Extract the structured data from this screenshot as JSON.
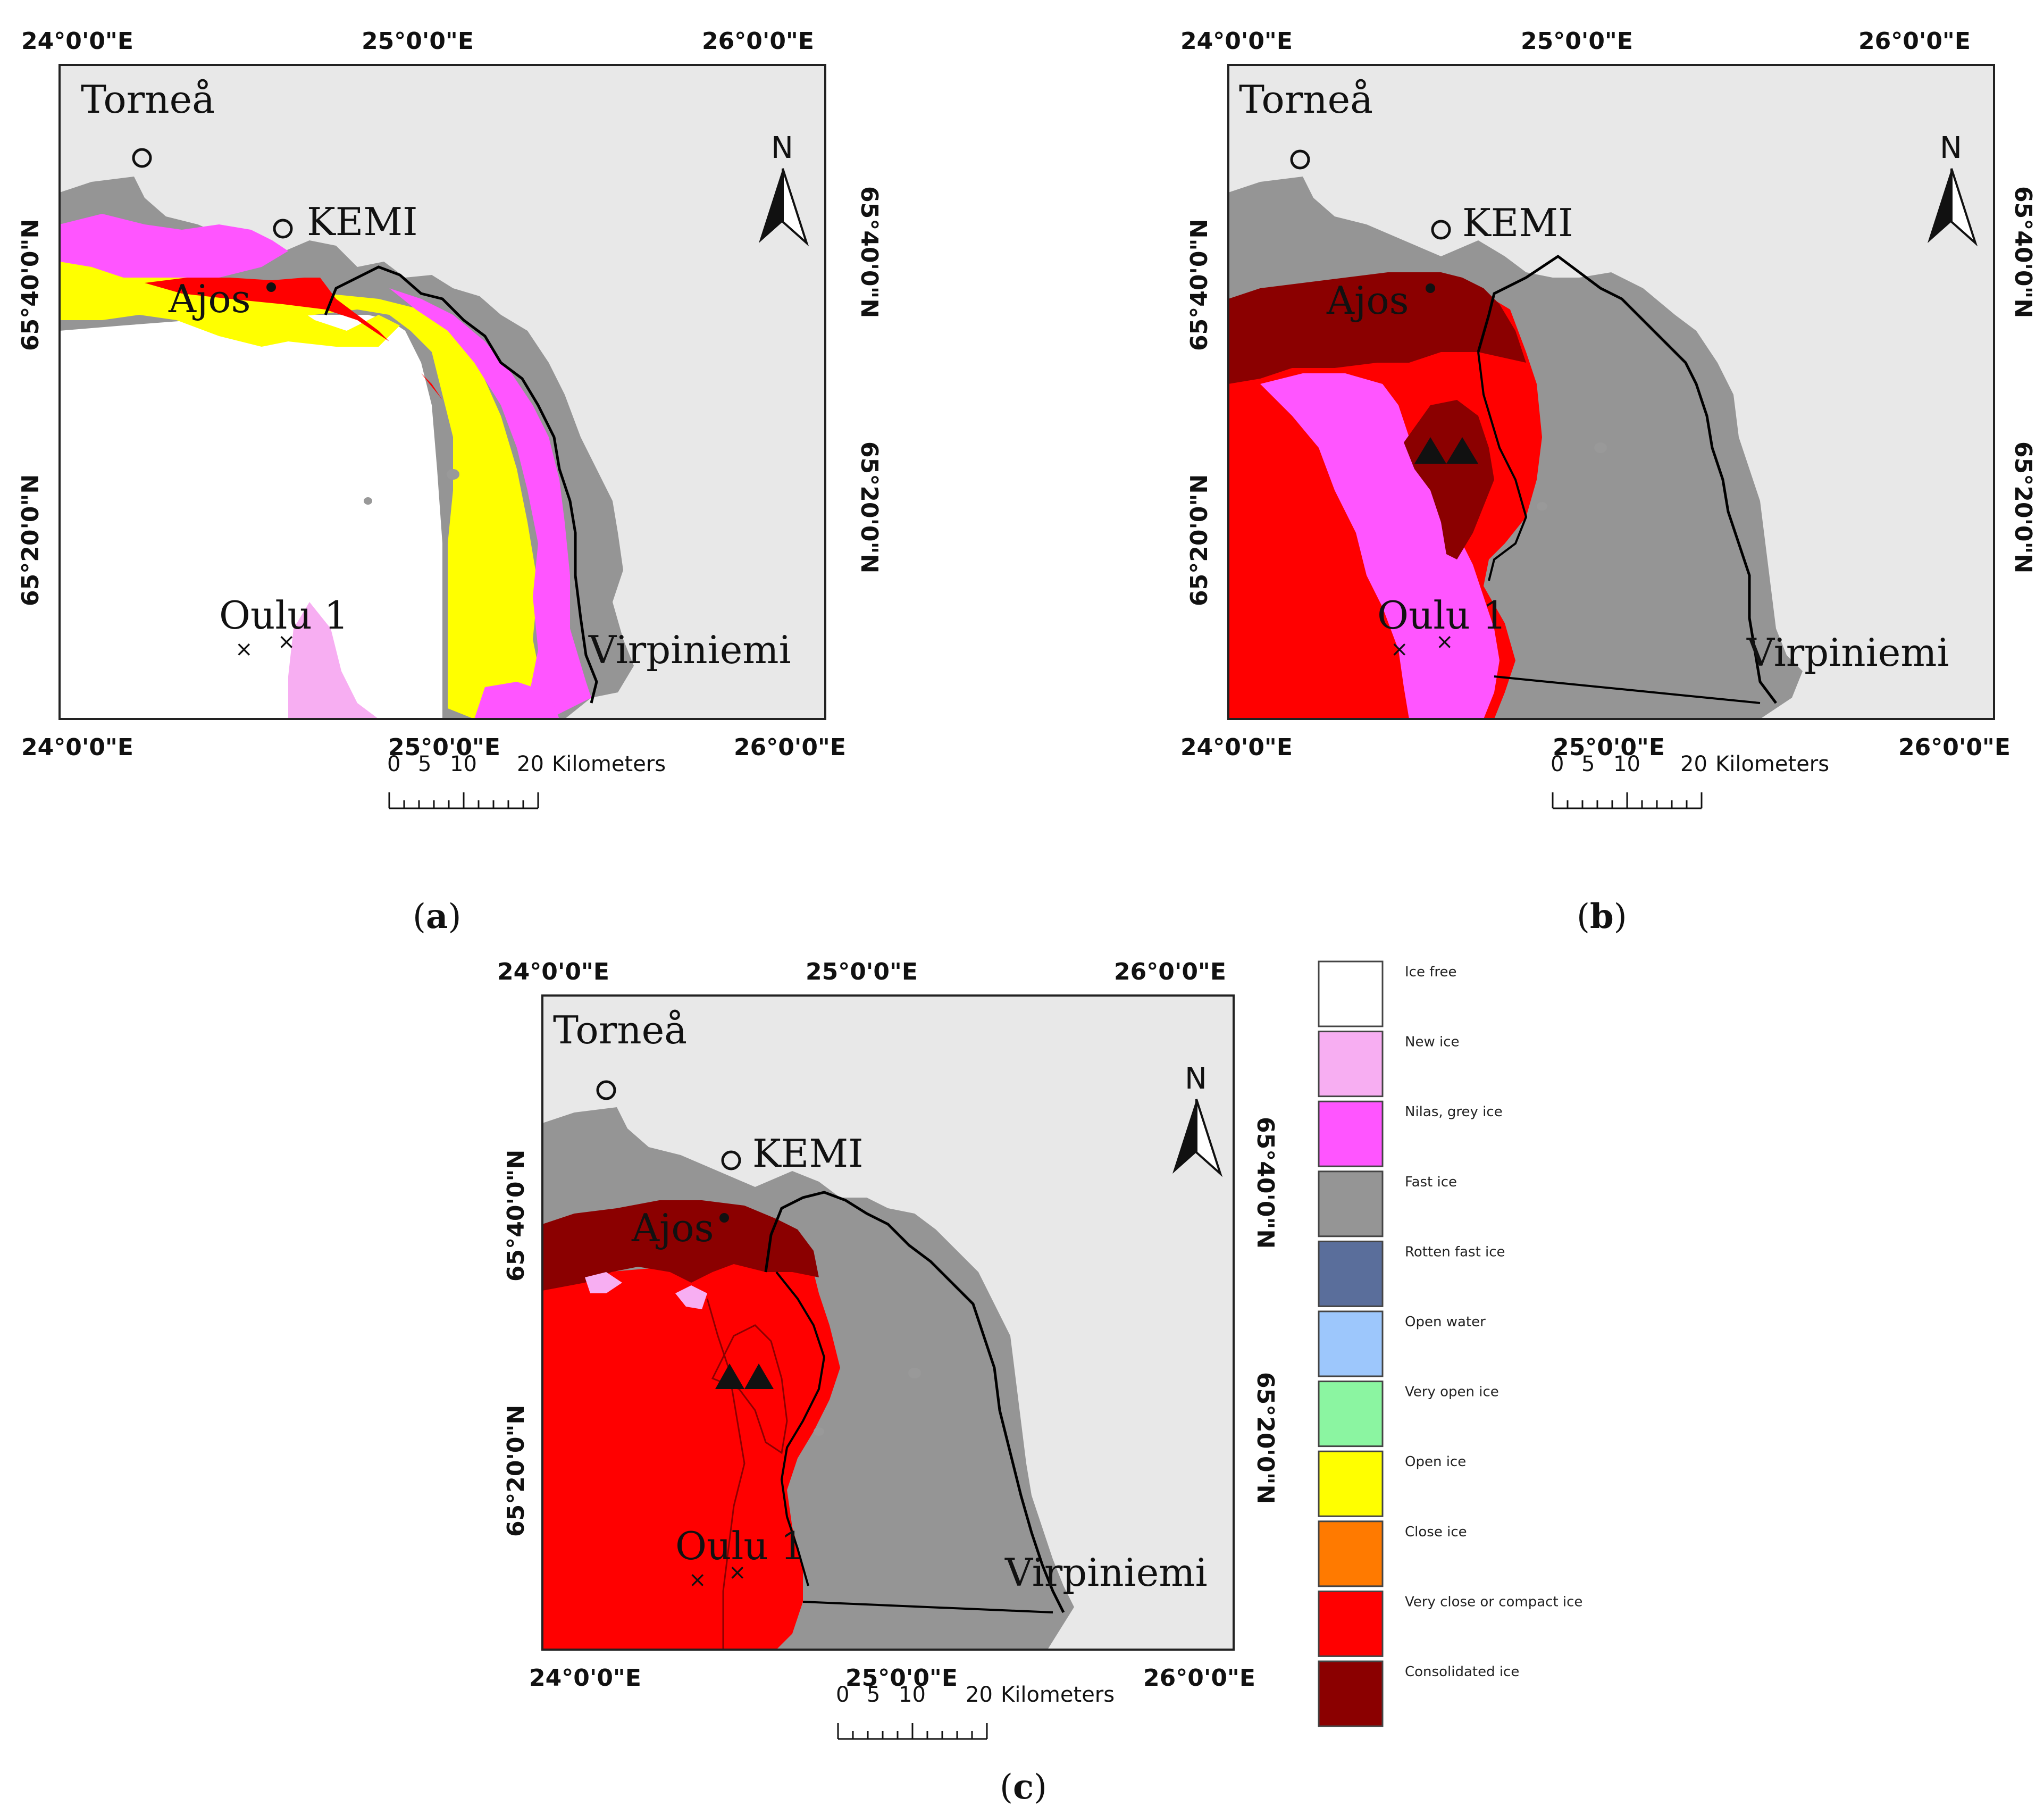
{
  "lon_labels": [
    "24°0'0\"E",
    "25°0'0\"E",
    "26°0'0\"E"
  ],
  "lat_labels": [
    "65°40'0\"N",
    "65°20'0\"N"
  ],
  "places": {
    "tornea": "Torneå",
    "kemi": "KEMI",
    "ajos": "Ajos",
    "oulu": "Oulu 1",
    "virpiniemi": "Virpiniemi"
  },
  "north": "N",
  "scale": {
    "ticks": [
      "0",
      "5",
      "10",
      "20"
    ],
    "unit": "Kilometers"
  },
  "panels": [
    {
      "id": "a",
      "caption_open": "(",
      "caption_letter": "a",
      "caption_close": ")"
    },
    {
      "id": "b",
      "caption_open": "(",
      "caption_letter": "b",
      "caption_close": ")"
    },
    {
      "id": "c",
      "caption_open": "(",
      "caption_letter": "c",
      "caption_close": ")"
    }
  ],
  "legend": [
    {
      "label": "Ice free",
      "color": "#ffffff"
    },
    {
      "label": "New ice",
      "color": "#f7aef2"
    },
    {
      "label": "Nilas, grey ice",
      "color": "#ff55ff"
    },
    {
      "label": "Fast ice",
      "color": "#959595"
    },
    {
      "label": "Rotten fast ice",
      "color": "#5a6e9b"
    },
    {
      "label": "Open water",
      "color": "#9dc7fc"
    },
    {
      "label": "Very open ice",
      "color": "#8bf5a1"
    },
    {
      "label": "Open ice",
      "color": "#ffff00"
    },
    {
      "label": "Close ice",
      "color": "#ff7a00"
    },
    {
      "label": "Very close or compact ice",
      "color": "#ff0000"
    },
    {
      "label": "Consolidated ice",
      "color": "#8b0000"
    }
  ],
  "colors": {
    "land": "#e8e8e8",
    "fast_ice": "#959595",
    "very_close_ice": "#ff0000",
    "consolidated_ice": "#8b0000",
    "nilas": "#ff55ff",
    "new_ice": "#f7aef2",
    "open_ice": "#ffff00",
    "ice_free": "#ffffff"
  }
}
